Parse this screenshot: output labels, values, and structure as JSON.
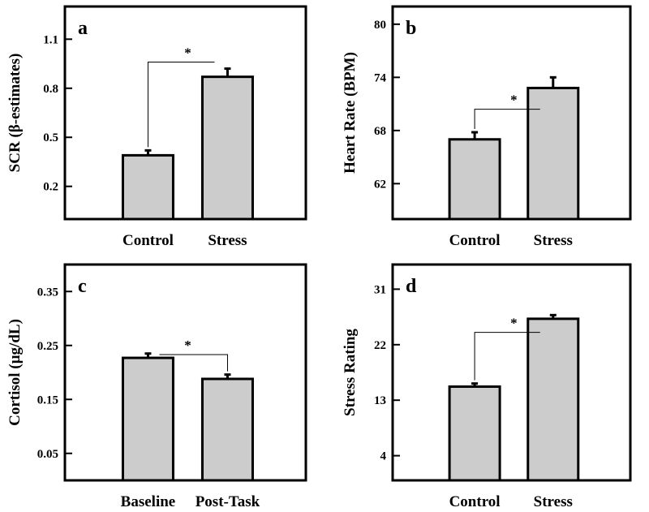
{
  "chart_data": [
    {
      "type": "bar",
      "panel_letter": "a",
      "ylabel": "SCR (β-estimates)",
      "categories": [
        "Control",
        "Stress"
      ],
      "values": [
        0.39,
        0.87
      ],
      "errors": [
        0.03,
        0.05
      ],
      "yticks": [
        "0.2",
        "0.5",
        "0.8",
        "1.1"
      ],
      "ylim": [
        0.0,
        1.3
      ],
      "significance": {
        "label": "*",
        "from": 0,
        "to": 1,
        "level": 0.96
      }
    },
    {
      "type": "bar",
      "panel_letter": "b",
      "ylabel": "Heart Rate (BPM)",
      "categories": [
        "Control",
        "Stress"
      ],
      "values": [
        67.0,
        72.8
      ],
      "errors": [
        0.8,
        1.2
      ],
      "yticks": [
        "62",
        "68",
        "74",
        "80"
      ],
      "ylim": [
        58,
        82
      ],
      "significance": {
        "label": "*",
        "from": 0,
        "to": 1,
        "level": 70.4
      }
    },
    {
      "type": "bar",
      "panel_letter": "c",
      "ylabel": "Cortisol (µg/dL)",
      "categories": [
        "Baseline",
        "Post-Task"
      ],
      "values": [
        0.227,
        0.188
      ],
      "errors": [
        0.008,
        0.008
      ],
      "yticks": [
        "0.05",
        "0.15",
        "0.25",
        "0.35"
      ],
      "ylim": [
        0.0,
        0.4
      ],
      "significance": {
        "label": "*",
        "from": 0,
        "to": 1,
        "level": 0.233
      }
    },
    {
      "type": "bar",
      "panel_letter": "d",
      "ylabel": "Stress Rating",
      "categories": [
        "Control",
        "Stress"
      ],
      "values": [
        15.2,
        26.2
      ],
      "errors": [
        0.5,
        0.6
      ],
      "yticks": [
        "4",
        "13",
        "22",
        "31"
      ],
      "ylim": [
        0,
        35
      ],
      "significance": {
        "label": "*",
        "from": 0,
        "to": 1,
        "level": 24.0
      }
    }
  ]
}
